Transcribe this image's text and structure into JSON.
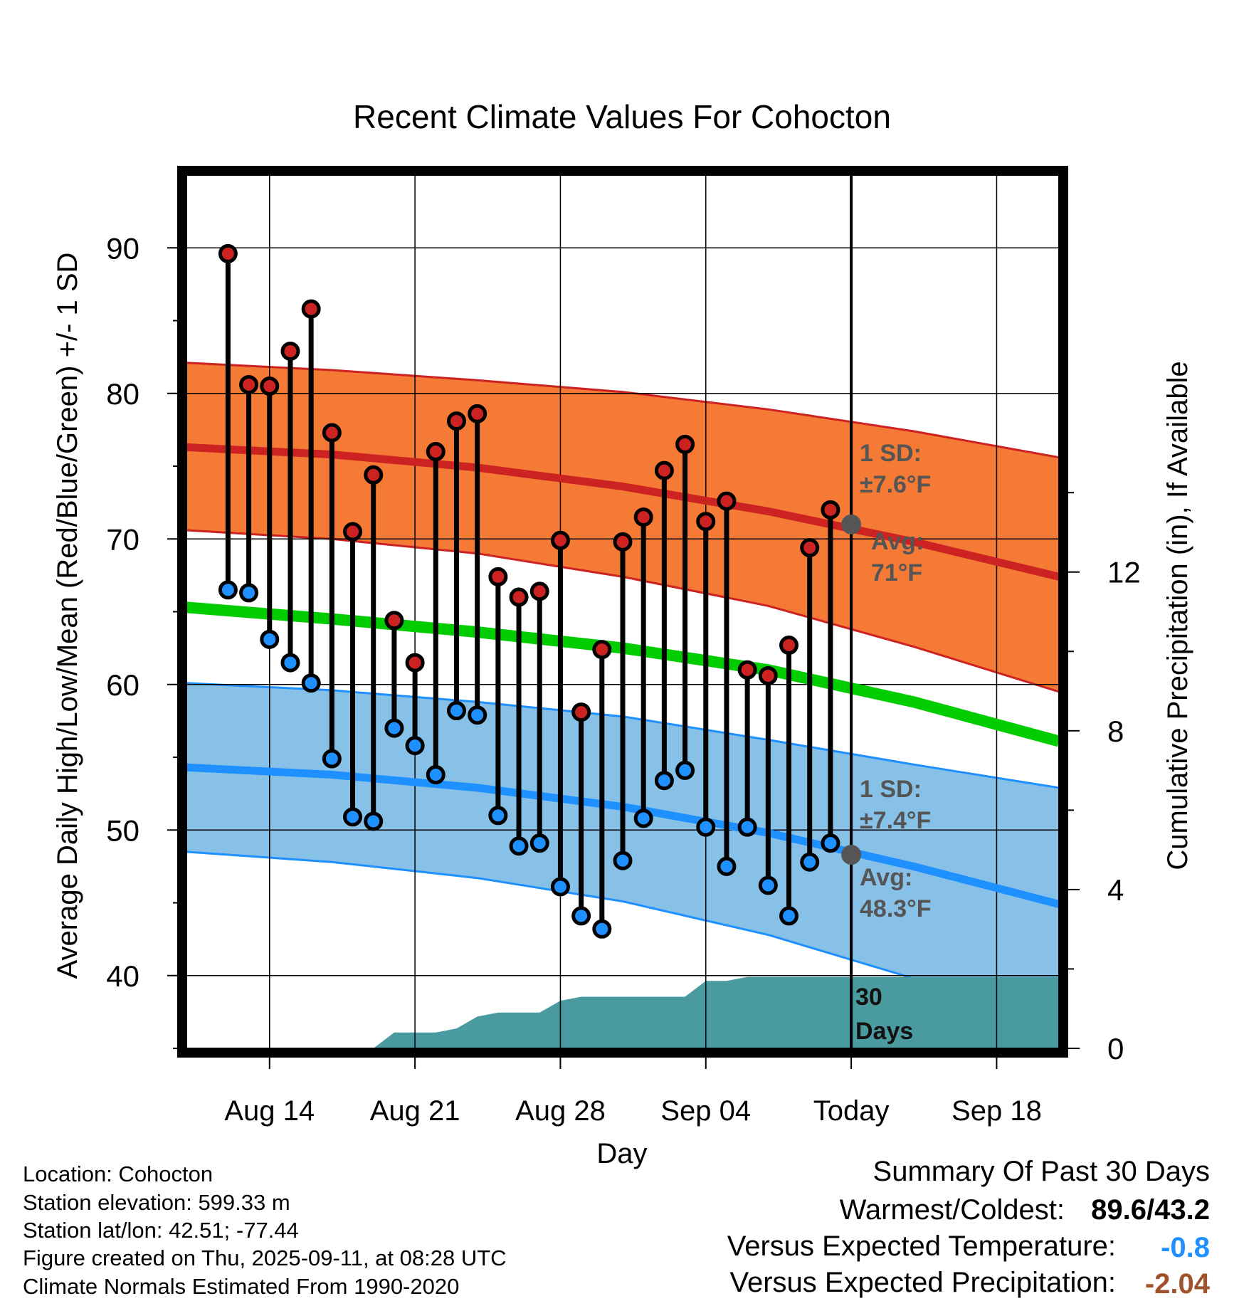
{
  "chart_data": {
    "type": "line",
    "title": "Recent Climate Values For Cohocton",
    "xlabel": "Day",
    "ylabel": "Average Daily High/Low/Mean (Red/Blue/Green) +/- 1 SD",
    "y2label": "Cumulative Precipitation (in), If Available",
    "x_range": [
      "2025-08-10",
      "2025-09-21"
    ],
    "ylim": [
      35,
      95
    ],
    "y2lim": [
      0,
      22
    ],
    "y_ticks": [
      40,
      50,
      60,
      70,
      80,
      90
    ],
    "y2_ticks": [
      0,
      4,
      8,
      12
    ],
    "x_ticks": [
      {
        "date": "2025-08-14",
        "label": "Aug 14"
      },
      {
        "date": "2025-08-21",
        "label": "Aug 21"
      },
      {
        "date": "2025-08-28",
        "label": "Aug 28"
      },
      {
        "date": "2025-09-04",
        "label": "Sep 04"
      },
      {
        "date": "2025-09-11",
        "label": "Today"
      },
      {
        "date": "2025-09-18",
        "label": "Sep 18"
      }
    ],
    "today": "2025-09-11",
    "grid": true,
    "dates": [
      "2025-08-12",
      "2025-08-13",
      "2025-08-14",
      "2025-08-15",
      "2025-08-16",
      "2025-08-17",
      "2025-08-18",
      "2025-08-19",
      "2025-08-20",
      "2025-08-21",
      "2025-08-22",
      "2025-08-23",
      "2025-08-24",
      "2025-08-25",
      "2025-08-26",
      "2025-08-27",
      "2025-08-28",
      "2025-08-29",
      "2025-08-30",
      "2025-08-31",
      "2025-09-01",
      "2025-09-02",
      "2025-09-03",
      "2025-09-04",
      "2025-09-05",
      "2025-09-06",
      "2025-09-07",
      "2025-09-08",
      "2025-09-09",
      "2025-09-10"
    ],
    "daily_high": [
      89.6,
      80.6,
      80.5,
      82.9,
      85.8,
      77.3,
      70.5,
      74.4,
      64.4,
      61.5,
      76.0,
      78.1,
      78.6,
      67.4,
      66.0,
      66.4,
      69.9,
      58.1,
      62.4,
      69.8,
      71.5,
      74.7,
      76.5,
      71.2,
      72.6,
      61.0,
      60.6,
      62.7,
      69.4,
      72.0
    ],
    "daily_low": [
      66.5,
      66.3,
      63.1,
      61.5,
      60.1,
      54.9,
      50.9,
      50.6,
      57.0,
      55.8,
      53.8,
      58.2,
      57.9,
      51.0,
      48.9,
      49.1,
      46.1,
      44.1,
      43.2,
      47.9,
      50.8,
      53.4,
      54.1,
      50.2,
      47.5,
      50.2,
      46.2,
      44.1,
      47.8,
      49.1
    ],
    "normal_curves": {
      "dates": [
        "2025-08-10",
        "2025-08-17",
        "2025-08-24",
        "2025-08-31",
        "2025-09-07",
        "2025-09-14",
        "2025-09-21"
      ],
      "high_mean": [
        76.3,
        75.8,
        74.9,
        73.6,
        71.9,
        69.8,
        67.4
      ],
      "high_upper": [
        82.1,
        81.6,
        80.9,
        80.1,
        78.9,
        77.4,
        75.6
      ],
      "high_lower": [
        70.6,
        70.0,
        69.0,
        67.4,
        65.4,
        62.6,
        59.5
      ],
      "mean": [
        65.3,
        64.5,
        63.6,
        62.5,
        61.0,
        58.8,
        56.1
      ],
      "low_mean": [
        54.3,
        53.8,
        52.9,
        51.6,
        49.8,
        47.5,
        44.9
      ],
      "low_upper": [
        60.1,
        59.6,
        58.8,
        57.8,
        56.2,
        54.5,
        52.9
      ],
      "low_lower": [
        48.5,
        47.8,
        46.7,
        45.1,
        42.8,
        39.8,
        36.7
      ]
    },
    "cumulative_precip": {
      "dates": [
        "2025-08-10",
        "2025-08-17",
        "2025-08-18",
        "2025-08-19",
        "2025-08-20",
        "2025-08-21",
        "2025-08-22",
        "2025-08-23",
        "2025-08-24",
        "2025-08-25",
        "2025-08-26",
        "2025-08-27",
        "2025-08-28",
        "2025-08-29",
        "2025-08-30",
        "2025-08-31",
        "2025-09-01",
        "2025-09-02",
        "2025-09-03",
        "2025-09-04",
        "2025-09-05",
        "2025-09-06",
        "2025-09-07",
        "2025-09-08",
        "2025-09-09",
        "2025-09-10",
        "2025-09-21"
      ],
      "values": [
        0,
        0,
        0,
        0,
        0.4,
        0.4,
        0.4,
        0.5,
        0.8,
        0.9,
        0.9,
        0.9,
        1.2,
        1.3,
        1.3,
        1.3,
        1.3,
        1.3,
        1.3,
        1.7,
        1.7,
        1.8,
        1.8,
        1.8,
        1.8,
        1.8,
        1.8
      ]
    },
    "series": [
      {
        "name": "Daily High",
        "color": "#cc2222"
      },
      {
        "name": "Daily Low",
        "color": "#1e90ff"
      },
      {
        "name": "Mean",
        "color": "#00cc00"
      },
      {
        "name": "Cumulative Precipitation",
        "color": "#4a9ba0"
      }
    ],
    "annotations": {
      "high_sd_line1": "1 SD:",
      "high_sd_line2": "±7.6°F",
      "high_avg_line1": "Avg:",
      "high_avg_line2": "71°F",
      "low_sd_line1": "1 SD:",
      "low_sd_line2": "±7.4°F",
      "low_avg_line1": "Avg:",
      "low_avg_line2": "48.3°F",
      "precip_line1": "30",
      "precip_line2": "Days",
      "high_avg_value": 71,
      "low_avg_value": 48.3
    },
    "colors": {
      "high_band": "#f47a35",
      "high_line": "#cc2222",
      "low_band": "#87c1e8",
      "low_line": "#1e90ff",
      "mean_line": "#00cc00",
      "precip_fill": "#4a9ba0",
      "annotation_text": "#555555",
      "avg_marker": "#555555"
    }
  },
  "footer": {
    "location": "Location: Cohocton",
    "elevation": "Station elevation: 599.33 m",
    "latlon": "Station lat/lon: 42.51; -77.44",
    "created": "Figure created on Thu, 2025-09-11, at 08:28 UTC",
    "normals": "Climate Normals Estimated From 1990-2020"
  },
  "summary": {
    "title": "Summary Of Past 30 Days",
    "warm_cold_label": "Warmest/Coldest:",
    "warm_cold_value": "89.6/43.2",
    "temp_label": "Versus Expected Temperature:",
    "temp_value": "-0.8",
    "temp_color": "#1e90ff",
    "precip_label": "Versus Expected Precipitation:",
    "precip_value": "-2.04",
    "precip_color": "#a0522d"
  }
}
